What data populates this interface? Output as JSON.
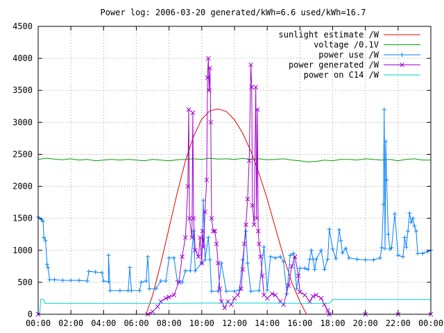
{
  "chart_data": {
    "type": "line",
    "title": "Power log: 2006-03-20 generated/kWh=6.6 used/kWh=16.7",
    "xlabel": "",
    "ylabel": "",
    "x_ticks": [
      "00:00",
      "02:00",
      "04:00",
      "06:00",
      "08:00",
      "10:00",
      "12:00",
      "14:00",
      "16:00",
      "18:00",
      "20:00",
      "22:00",
      "00:00"
    ],
    "x_range_hours": [
      0,
      24
    ],
    "y_ticks": [
      "0",
      "500",
      "1000",
      "1500",
      "2000",
      "2500",
      "3000",
      "3500",
      "4000",
      "4500"
    ],
    "ylim": [
      0,
      4500
    ],
    "grid": true,
    "legend_position": "top-right",
    "series": [
      {
        "name": "sunlight estimate /W",
        "color": "#e00000",
        "style": "line",
        "points": [
          [
            6.6,
            0
          ],
          [
            7.0,
            300
          ],
          [
            7.5,
            800
          ],
          [
            8.0,
            1350
          ],
          [
            8.5,
            1900
          ],
          [
            9.0,
            2400
          ],
          [
            9.5,
            2780
          ],
          [
            10.0,
            3050
          ],
          [
            10.5,
            3180
          ],
          [
            11.0,
            3210
          ],
          [
            11.5,
            3170
          ],
          [
            12.0,
            3040
          ],
          [
            12.5,
            2830
          ],
          [
            13.0,
            2550
          ],
          [
            13.5,
            2200
          ],
          [
            14.0,
            1800
          ],
          [
            14.5,
            1350
          ],
          [
            15.0,
            900
          ],
          [
            15.5,
            500
          ],
          [
            16.0,
            200
          ],
          [
            16.4,
            0
          ]
        ]
      },
      {
        "name": "voltage /0.1V",
        "color": "#00a000",
        "style": "line",
        "points": [
          [
            0,
            2420
          ],
          [
            0.5,
            2440
          ],
          [
            1.0,
            2425
          ],
          [
            1.5,
            2415
          ],
          [
            2.0,
            2430
          ],
          [
            2.5,
            2410
          ],
          [
            3.0,
            2420
          ],
          [
            3.5,
            2400
          ],
          [
            4.0,
            2410
          ],
          [
            4.5,
            2420
          ],
          [
            5.0,
            2410
          ],
          [
            5.5,
            2420
          ],
          [
            6.0,
            2410
          ],
          [
            6.5,
            2400
          ],
          [
            7.0,
            2420
          ],
          [
            7.5,
            2410
          ],
          [
            8.0,
            2400
          ],
          [
            8.5,
            2415
          ],
          [
            9.0,
            2420
          ],
          [
            9.5,
            2430
          ],
          [
            10.0,
            2420
          ],
          [
            10.5,
            2440
          ],
          [
            11.0,
            2425
          ],
          [
            11.5,
            2430
          ],
          [
            12.0,
            2420
          ],
          [
            12.5,
            2435
          ],
          [
            13.0,
            2420
          ],
          [
            13.5,
            2430
          ],
          [
            14.0,
            2415
          ],
          [
            14.5,
            2420
          ],
          [
            15.0,
            2430
          ],
          [
            15.5,
            2410
          ],
          [
            16.0,
            2400
          ],
          [
            16.5,
            2380
          ],
          [
            17.0,
            2390
          ],
          [
            17.5,
            2410
          ],
          [
            18.0,
            2400
          ],
          [
            18.5,
            2420
          ],
          [
            19.0,
            2420
          ],
          [
            19.5,
            2410
          ],
          [
            20.0,
            2430
          ],
          [
            20.5,
            2420
          ],
          [
            21.0,
            2410
          ],
          [
            21.5,
            2420
          ],
          [
            22.0,
            2400
          ],
          [
            22.5,
            2420
          ],
          [
            23.0,
            2430
          ],
          [
            23.5,
            2410
          ],
          [
            24.0,
            2410
          ]
        ]
      },
      {
        "name": "power use /W",
        "color": "#0080ff",
        "style": "linespoints-plus",
        "points": [
          [
            0,
            1520
          ],
          [
            0.2,
            1480
          ],
          [
            0.3,
            1450
          ],
          [
            0.35,
            1200
          ],
          [
            0.45,
            1150
          ],
          [
            0.55,
            780
          ],
          [
            0.6,
            730
          ],
          [
            0.7,
            540
          ],
          [
            1.0,
            540
          ],
          [
            1.5,
            530
          ],
          [
            2.0,
            530
          ],
          [
            2.5,
            530
          ],
          [
            3.0,
            520
          ],
          [
            3.1,
            670
          ],
          [
            3.5,
            660
          ],
          [
            3.9,
            650
          ],
          [
            4.0,
            520
          ],
          [
            4.3,
            510
          ],
          [
            4.3,
            920
          ],
          [
            4.4,
            370
          ],
          [
            5.0,
            370
          ],
          [
            5.5,
            370
          ],
          [
            5.6,
            730
          ],
          [
            5.7,
            370
          ],
          [
            6.2,
            370
          ],
          [
            6.3,
            500
          ],
          [
            6.6,
            520
          ],
          [
            6.7,
            900
          ],
          [
            6.8,
            400
          ],
          [
            7.2,
            400
          ],
          [
            7.5,
            520
          ],
          [
            7.8,
            520
          ],
          [
            8.0,
            880
          ],
          [
            8.3,
            880
          ],
          [
            8.5,
            520
          ],
          [
            8.8,
            500
          ],
          [
            9.0,
            680
          ],
          [
            9.3,
            680
          ],
          [
            9.5,
            1300
          ],
          [
            9.6,
            680
          ],
          [
            10.0,
            800
          ],
          [
            10.1,
            1780
          ],
          [
            10.2,
            850
          ],
          [
            10.4,
            1200
          ],
          [
            10.5,
            850
          ],
          [
            10.6,
            360
          ],
          [
            11.0,
            360
          ],
          [
            11.2,
            800
          ],
          [
            11.5,
            360
          ],
          [
            12.0,
            360
          ],
          [
            12.3,
            380
          ],
          [
            12.5,
            850
          ],
          [
            12.7,
            1300
          ],
          [
            12.8,
            800
          ],
          [
            13.0,
            360
          ],
          [
            13.5,
            370
          ],
          [
            13.8,
            1050
          ],
          [
            14.0,
            380
          ],
          [
            14.2,
            900
          ],
          [
            14.5,
            880
          ],
          [
            14.8,
            900
          ],
          [
            15.0,
            820
          ],
          [
            15.2,
            320
          ],
          [
            15.4,
            920
          ],
          [
            15.6,
            950
          ],
          [
            15.8,
            400
          ],
          [
            16.0,
            720
          ],
          [
            16.3,
            720
          ],
          [
            16.5,
            700
          ],
          [
            16.6,
            860
          ],
          [
            16.7,
            1000
          ],
          [
            16.8,
            860
          ],
          [
            16.9,
            700
          ],
          [
            17.0,
            860
          ],
          [
            17.3,
            1000
          ],
          [
            17.5,
            700
          ],
          [
            17.7,
            860
          ],
          [
            17.8,
            1330
          ],
          [
            18.0,
            1020
          ],
          [
            18.2,
            870
          ],
          [
            18.4,
            1320
          ],
          [
            18.5,
            1150
          ],
          [
            18.6,
            960
          ],
          [
            18.8,
            1030
          ],
          [
            19.0,
            880
          ],
          [
            19.5,
            860
          ],
          [
            20.0,
            850
          ],
          [
            20.5,
            850
          ],
          [
            20.9,
            880
          ],
          [
            21.0,
            1040
          ],
          [
            21.1,
            1720
          ],
          [
            21.15,
            3200
          ],
          [
            21.2,
            1030
          ],
          [
            21.25,
            2700
          ],
          [
            21.3,
            2100
          ],
          [
            21.4,
            1250
          ],
          [
            21.5,
            1020
          ],
          [
            21.6,
            1040
          ],
          [
            21.8,
            1570
          ],
          [
            22.0,
            920
          ],
          [
            22.3,
            900
          ],
          [
            22.4,
            1200
          ],
          [
            22.5,
            1050
          ],
          [
            22.6,
            1300
          ],
          [
            22.7,
            1580
          ],
          [
            22.8,
            1440
          ],
          [
            22.9,
            1500
          ],
          [
            23.0,
            1380
          ],
          [
            23.1,
            1300
          ],
          [
            23.2,
            950
          ],
          [
            23.5,
            950
          ],
          [
            23.8,
            980
          ],
          [
            24.0,
            1000
          ]
        ]
      },
      {
        "name": "power generated /W",
        "color": "#a000d0",
        "style": "linespoints-x",
        "points": [
          [
            0,
            0
          ],
          [
            6.7,
            0
          ],
          [
            7.0,
            40
          ],
          [
            7.3,
            120
          ],
          [
            7.5,
            200
          ],
          [
            7.8,
            250
          ],
          [
            8.0,
            270
          ],
          [
            8.3,
            300
          ],
          [
            8.6,
            500
          ],
          [
            8.8,
            900
          ],
          [
            9.0,
            1200
          ],
          [
            9.15,
            2000
          ],
          [
            9.2,
            3200
          ],
          [
            9.25,
            1500
          ],
          [
            9.4,
            1200
          ],
          [
            9.45,
            3150
          ],
          [
            9.5,
            1500
          ],
          [
            9.6,
            1000
          ],
          [
            9.8,
            900
          ],
          [
            9.9,
            1200
          ],
          [
            10.0,
            800
          ],
          [
            10.05,
            1300
          ],
          [
            10.1,
            1050
          ],
          [
            10.2,
            1600
          ],
          [
            10.3,
            2100
          ],
          [
            10.35,
            3700
          ],
          [
            10.4,
            4000
          ],
          [
            10.45,
            3500
          ],
          [
            10.5,
            3850
          ],
          [
            10.55,
            3000
          ],
          [
            10.6,
            1500
          ],
          [
            10.7,
            1300
          ],
          [
            10.8,
            1300
          ],
          [
            10.9,
            1100
          ],
          [
            11.0,
            800
          ],
          [
            11.1,
            400
          ],
          [
            11.2,
            200
          ],
          [
            11.4,
            100
          ],
          [
            11.6,
            200
          ],
          [
            11.8,
            150
          ],
          [
            12.0,
            250
          ],
          [
            12.2,
            300
          ],
          [
            12.4,
            400
          ],
          [
            12.5,
            700
          ],
          [
            12.6,
            1100
          ],
          [
            12.7,
            1400
          ],
          [
            12.8,
            1800
          ],
          [
            12.9,
            2400
          ],
          [
            13.0,
            3900
          ],
          [
            13.05,
            3550
          ],
          [
            13.1,
            1700
          ],
          [
            13.2,
            1400
          ],
          [
            13.3,
            3550
          ],
          [
            13.35,
            1500
          ],
          [
            13.4,
            3200
          ],
          [
            13.45,
            1300
          ],
          [
            13.5,
            1100
          ],
          [
            13.6,
            900
          ],
          [
            13.7,
            600
          ],
          [
            13.8,
            300
          ],
          [
            14.0,
            250
          ],
          [
            14.3,
            320
          ],
          [
            14.5,
            300
          ],
          [
            14.8,
            200
          ],
          [
            15.0,
            150
          ],
          [
            15.3,
            450
          ],
          [
            15.5,
            750
          ],
          [
            15.7,
            900
          ],
          [
            15.9,
            600
          ],
          [
            16.0,
            350
          ],
          [
            16.3,
            300
          ],
          [
            16.6,
            200
          ],
          [
            16.8,
            280
          ],
          [
            17.0,
            300
          ],
          [
            17.3,
            250
          ],
          [
            17.5,
            150
          ],
          [
            17.7,
            60
          ],
          [
            17.8,
            0
          ],
          [
            20.0,
            0
          ],
          [
            22.0,
            0
          ],
          [
            24.0,
            0
          ]
        ]
      },
      {
        "name": "power on C14 /W",
        "color": "#00d0d0",
        "style": "line",
        "points": [
          [
            0,
            0
          ],
          [
            0.1,
            0
          ],
          [
            0.15,
            230
          ],
          [
            0.35,
            230
          ],
          [
            0.4,
            170
          ],
          [
            1.0,
            170
          ],
          [
            2.0,
            170
          ],
          [
            4.0,
            170
          ],
          [
            6.0,
            170
          ],
          [
            8.0,
            170
          ],
          [
            10.0,
            175
          ],
          [
            12.0,
            175
          ],
          [
            14.0,
            175
          ],
          [
            16.0,
            170
          ],
          [
            17.8,
            170
          ],
          [
            18.0,
            230
          ],
          [
            20.0,
            230
          ],
          [
            22.0,
            230
          ],
          [
            24.0,
            230
          ]
        ]
      }
    ]
  }
}
